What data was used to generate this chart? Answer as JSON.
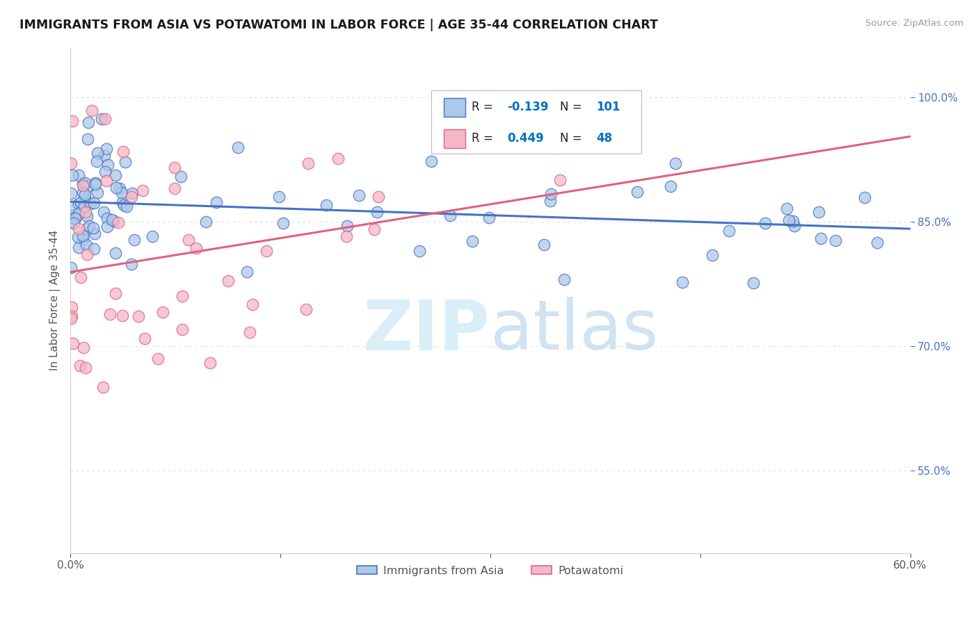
{
  "title": "IMMIGRANTS FROM ASIA VS POTAWATOMI IN LABOR FORCE | AGE 35-44 CORRELATION CHART",
  "source": "Source: ZipAtlas.com",
  "ylabel": "In Labor Force | Age 35-44",
  "xlim": [
    0.0,
    0.6
  ],
  "ylim": [
    0.45,
    1.06
  ],
  "yticks": [
    0.55,
    0.7,
    0.85,
    1.0
  ],
  "ytick_labels": [
    "55.0%",
    "70.0%",
    "85.0%",
    "100.0%"
  ],
  "xticks": [
    0.0,
    0.15,
    0.3,
    0.45,
    0.6
  ],
  "xtick_labels": [
    "0.0%",
    "",
    "",
    "",
    "60.0%"
  ],
  "r_asia": -0.139,
  "n_asia": 101,
  "r_potawatomi": 0.449,
  "n_potawatomi": 48,
  "asia_color": "#adc8e8",
  "asia_edge_color": "#4472c4",
  "potawatomi_color": "#f4b8c8",
  "potawatomi_edge_color": "#e06080",
  "asia_line_color": "#4472c4",
  "potawatomi_line_color": "#e06080",
  "background_color": "#ffffff",
  "grid_color": "#dddddd",
  "legend_r_color": "#0070c0",
  "legend_n_color": "#0070c0",
  "watermark_color": "#daeef8",
  "right_tick_color": "#4472c4"
}
